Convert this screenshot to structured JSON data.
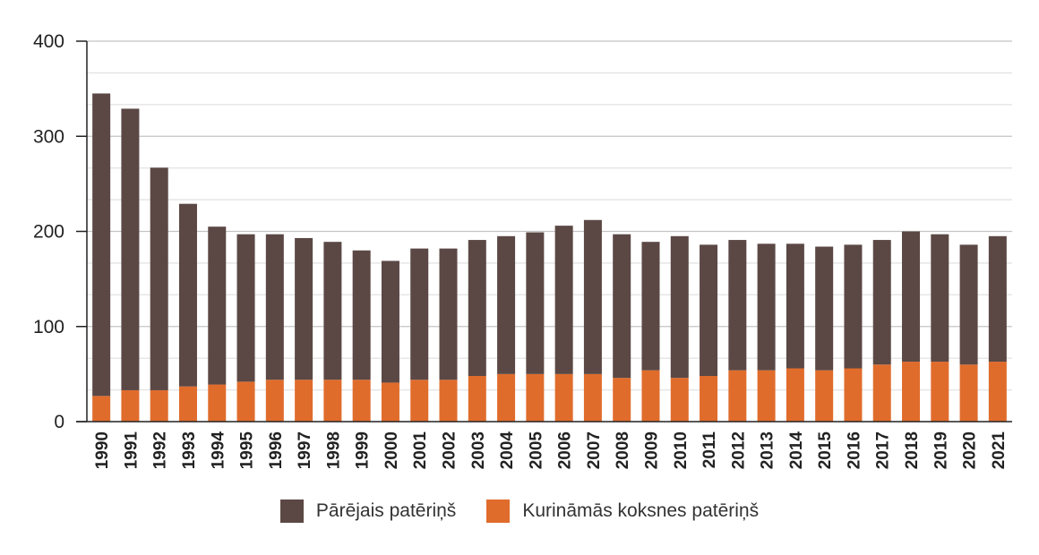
{
  "chart_data": {
    "type": "bar",
    "stacked": true,
    "categories": [
      "1990",
      "1991",
      "1992",
      "1993",
      "1994",
      "1995",
      "1996",
      "1997",
      "1998",
      "1999",
      "2000",
      "2001",
      "2002",
      "2003",
      "2004",
      "2005",
      "2006",
      "2007",
      "2008",
      "2009",
      "2010",
      "2011",
      "2012",
      "2013",
      "2014",
      "2015",
      "2016",
      "2017",
      "2018",
      "2019",
      "2020",
      "2021"
    ],
    "series": [
      {
        "name": "Kurināmās koksnes patēriņš",
        "color": "#e06c2c",
        "values": [
          27,
          33,
          33,
          37,
          39,
          42,
          44,
          44,
          44,
          44,
          41,
          44,
          44,
          48,
          50,
          50,
          50,
          50,
          46,
          54,
          46,
          48,
          54,
          54,
          56,
          54,
          56,
          60,
          63,
          63,
          60,
          63
        ]
      },
      {
        "name": "Pārējais patēriņš",
        "color": "#5b4845",
        "values": [
          318,
          296,
          234,
          192,
          166,
          155,
          153,
          149,
          145,
          136,
          128,
          138,
          138,
          143,
          145,
          149,
          156,
          162,
          151,
          135,
          149,
          138,
          137,
          133,
          131,
          130,
          130,
          131,
          137,
          134,
          126,
          132
        ]
      }
    ],
    "yticks": [
      0,
      100,
      200,
      300,
      400
    ],
    "ylim": [
      0,
      400
    ],
    "grid": true,
    "legend_position": "bottom"
  },
  "legend_order": [
    1,
    0
  ]
}
